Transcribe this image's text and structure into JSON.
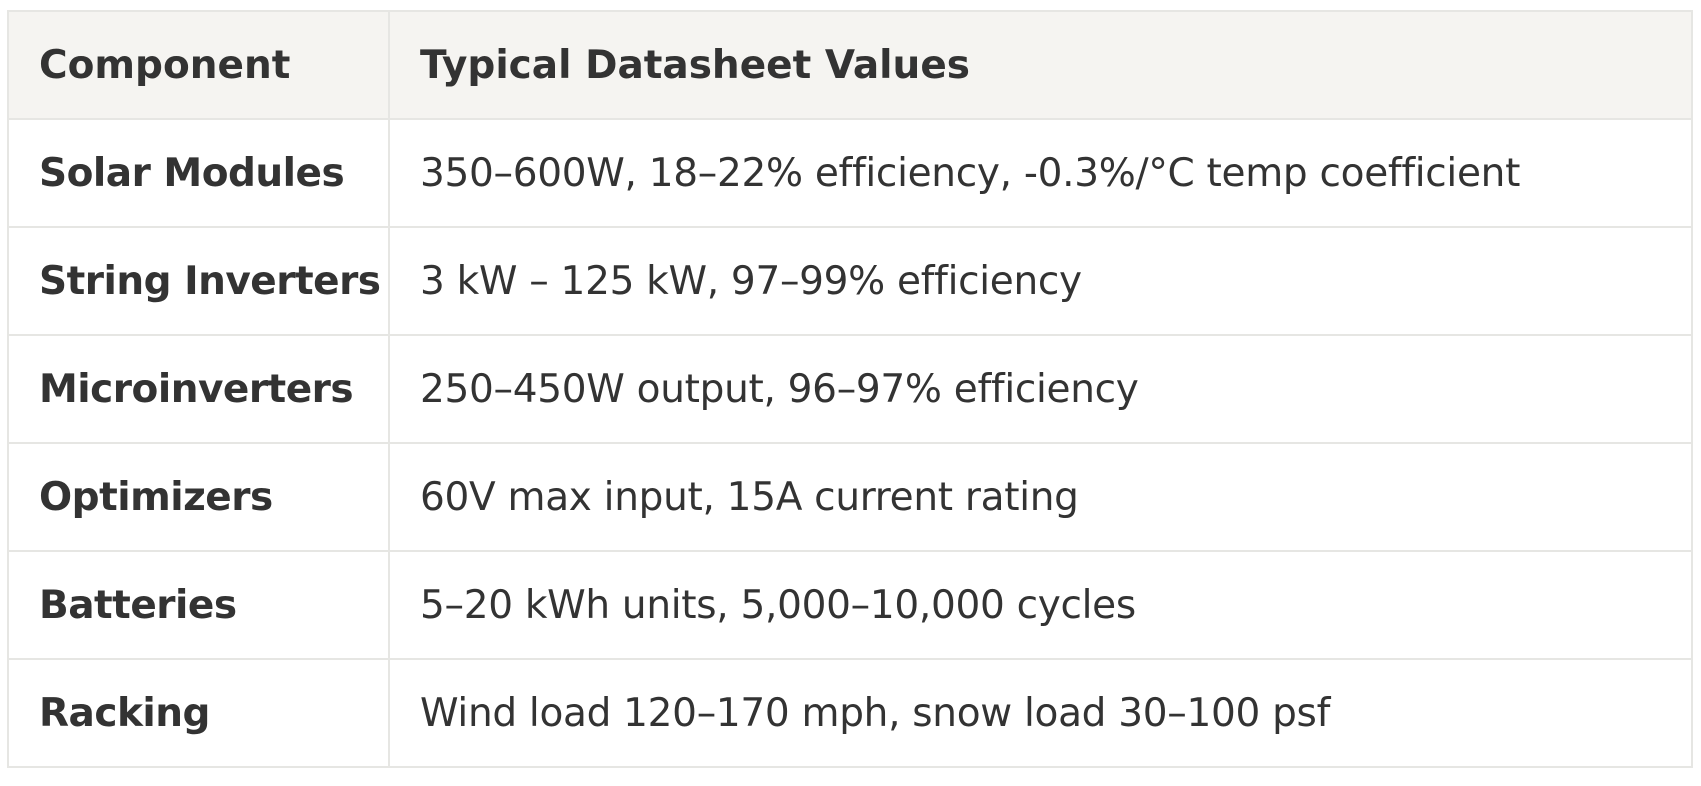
{
  "table": {
    "headers": [
      "Component",
      "Typical Datasheet Values"
    ],
    "rows": [
      {
        "component": "Solar Modules",
        "values": "350–600W, 18–22% efficiency, -0.3%/°C temp coefficient"
      },
      {
        "component": "String Inverters",
        "values": "3 kW – 125 kW, 97–99% efficiency"
      },
      {
        "component": "Microinverters",
        "values": "250–450W output, 96–97% efficiency"
      },
      {
        "component": "Optimizers",
        "values": "60V max input, 15A current rating"
      },
      {
        "component": "Batteries",
        "values": "5–20 kWh units, 5,000–10,000 cycles"
      },
      {
        "component": "Racking",
        "values": "Wind load 120–170 mph, snow load 30–100 psf"
      }
    ]
  },
  "colors": {
    "header_background": "#f5f4f1",
    "border": "#e6e6e3",
    "text": "#333333"
  }
}
